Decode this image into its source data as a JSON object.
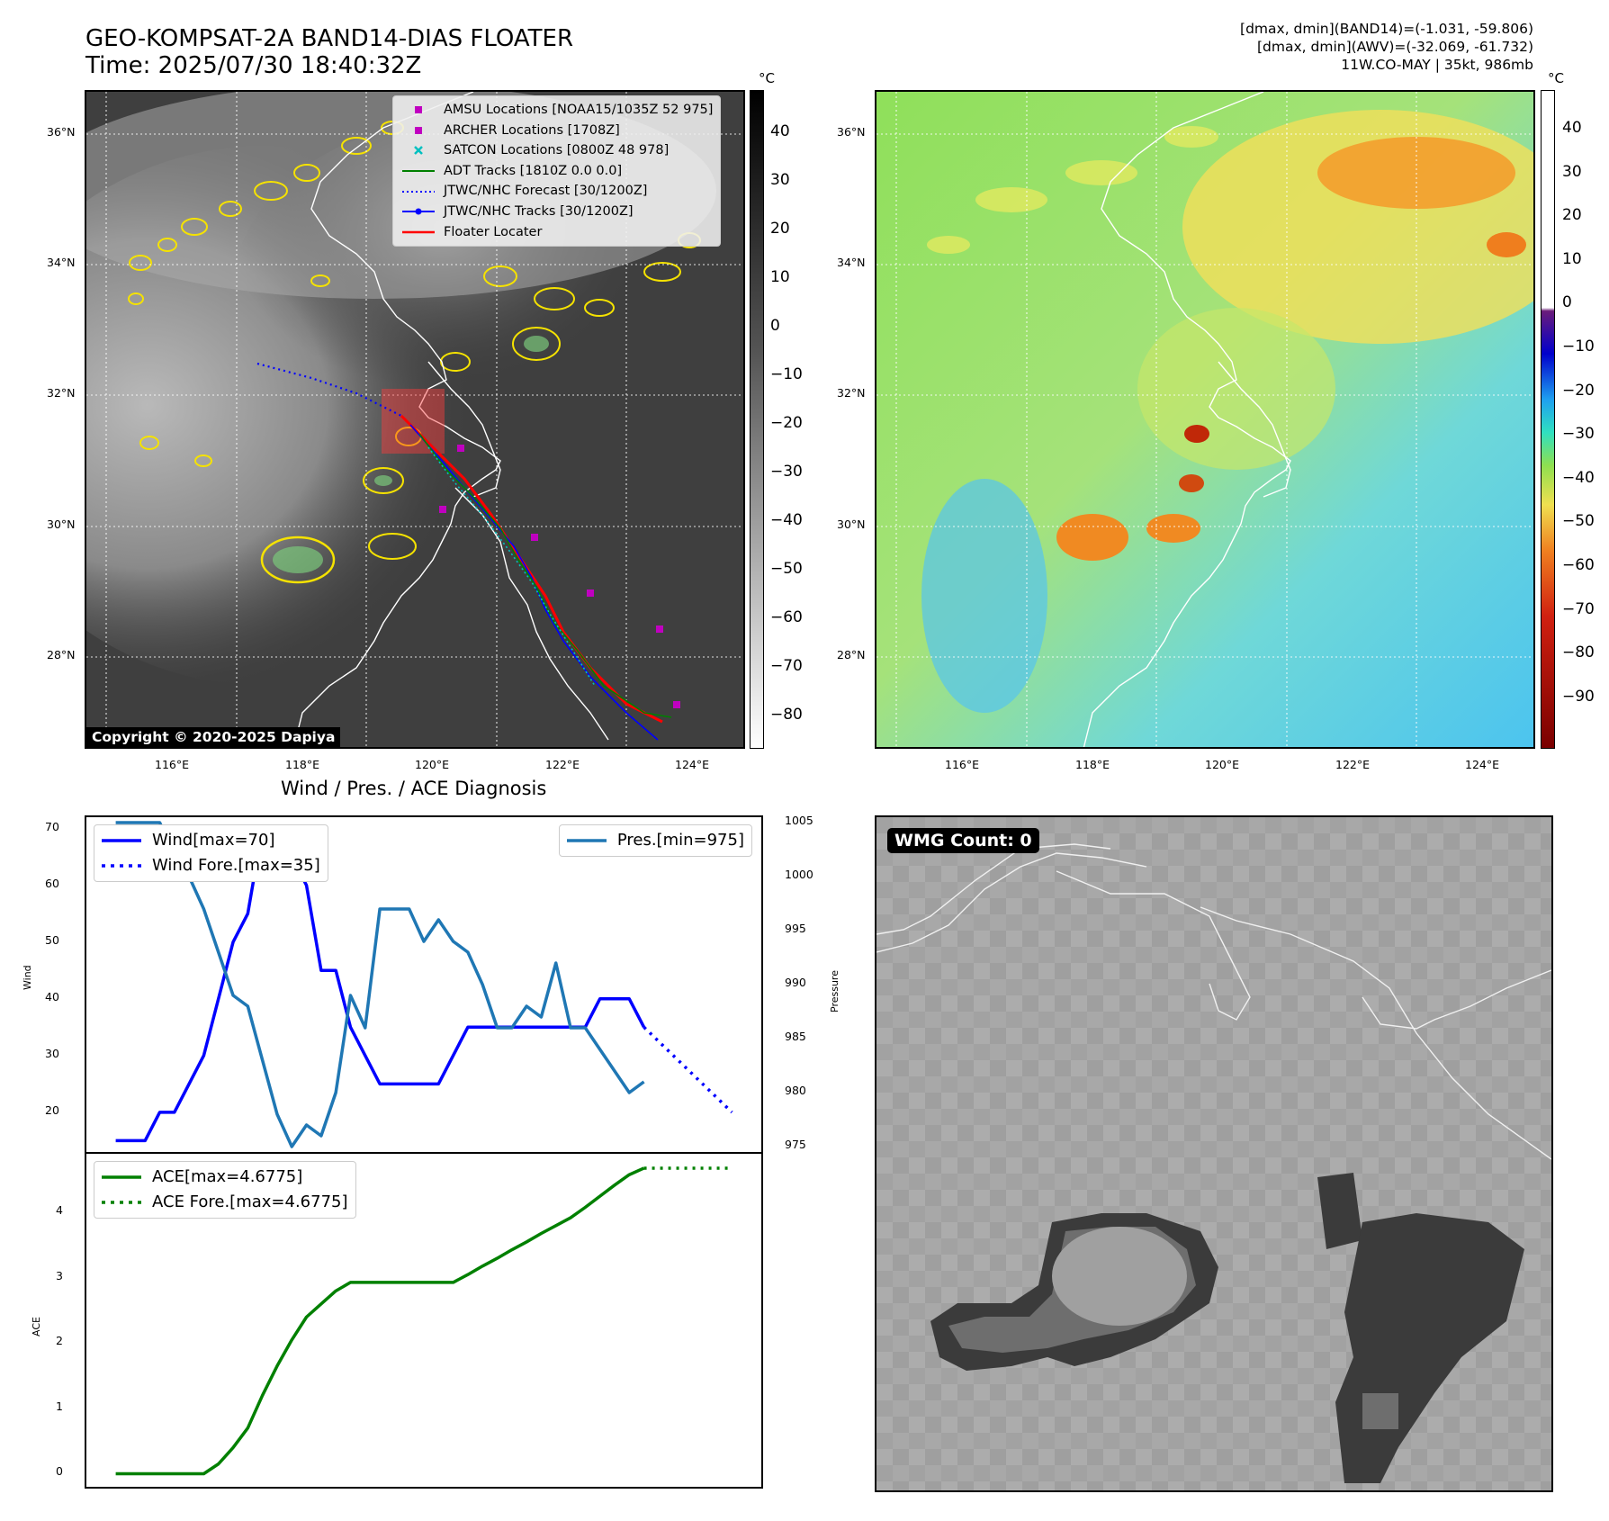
{
  "header": {
    "title_line1": "GEO-KOMPSAT-2A BAND14-DIAS FLOATER",
    "title_line2": "Time: 2025/07/30 18:40:32Z",
    "info_line1": "[dmax, dmin](BAND14)=(-1.031, -59.806)",
    "info_line2": "[dmax, dmin](AWV)=(-32.069, -61.732)",
    "info_line3": "11W.CO-MAY | 35kt, 986mb"
  },
  "map": {
    "lon_ticks": [
      "116°E",
      "118°E",
      "120°E",
      "122°E",
      "124°E"
    ],
    "lat_ticks": [
      "36°N",
      "34°N",
      "32°N",
      "30°N",
      "28°N"
    ],
    "legend": [
      {
        "label": "AMSU Locations [NOAA15/1035Z 52 975]",
        "symbol": "square",
        "color": "#c000c0"
      },
      {
        "label": "ARCHER Locations [1708Z]",
        "symbol": "square",
        "color": "#c000c0"
      },
      {
        "label": "SATCON Locations [0800Z 48 978]",
        "symbol": "x",
        "color": "#00c0c0"
      },
      {
        "label": "ADT Tracks [1810Z 0.0 0.0]",
        "symbol": "line",
        "color": "#008000"
      },
      {
        "label": "JTWC/NHC Forecast [30/1200Z]",
        "symbol": "dotted",
        "color": "#0000ff"
      },
      {
        "label": "JTWC/NHC Tracks [30/1200Z]",
        "symbol": "line-dot",
        "color": "#0000ff"
      },
      {
        "label": "Floater Locater",
        "symbol": "line",
        "color": "#ff0000"
      }
    ],
    "copyright": "Copyright © 2020-2025 Dapiya",
    "ir_colorbar": {
      "unit": "°C",
      "ticks": [
        "40",
        "30",
        "20",
        "10",
        "0",
        "−10",
        "−20",
        "−30",
        "−40",
        "−50",
        "−60",
        "−70",
        "−80"
      ]
    },
    "awv_colorbar": {
      "unit": "°C",
      "ticks": [
        "40",
        "30",
        "20",
        "10",
        "0",
        "−10",
        "−20",
        "−30",
        "−40",
        "−50",
        "−60",
        "−70",
        "−80",
        "−90"
      ]
    }
  },
  "diagnosis": {
    "title": "Wind / Pres. / ACE Diagnosis",
    "wind_ylabel": "Wind",
    "pres_ylabel": "Pressure",
    "ace_ylabel": "ACE",
    "wind_ticks": [
      "70",
      "60",
      "50",
      "40",
      "30",
      "20"
    ],
    "pres_ticks": [
      "1005",
      "1000",
      "995",
      "990",
      "985",
      "980",
      "975"
    ],
    "ace_ticks": [
      "4",
      "3",
      "2",
      "1",
      "0"
    ],
    "legend_wind": "Wind[max=70]",
    "legend_wind_fore": "Wind Fore.[max=35]",
    "legend_pres": "Pres.[min=975]",
    "legend_ace": "ACE[max=4.6775]",
    "legend_ace_fore": "ACE Fore.[max=4.6775]",
    "wmg_label": "WMG Count: 0"
  },
  "chart_data": [
    {
      "type": "line",
      "name_hint": "wind-pressure",
      "x": [
        0,
        1,
        2,
        3,
        4,
        5,
        6,
        7,
        8,
        9,
        10,
        11,
        12,
        13,
        14,
        15,
        16,
        17,
        18,
        19,
        20,
        21,
        22,
        23,
        24,
        25,
        26,
        27,
        28,
        29,
        30,
        31,
        32,
        33,
        34,
        35,
        36
      ],
      "series": [
        {
          "name": "Wind[max=70]",
          "axis": "wind",
          "color": "#0000ff",
          "values": [
            15,
            15,
            15,
            20,
            20,
            25,
            30,
            40,
            50,
            55,
            70,
            65,
            65,
            60,
            45,
            45,
            35,
            30,
            25,
            25,
            25,
            25,
            25,
            30,
            35,
            35,
            35,
            35,
            35,
            35,
            35,
            35,
            35,
            40,
            40,
            40,
            35
          ]
        },
        {
          "name": "Wind Fore.[max=35]",
          "axis": "wind",
          "color": "#0000ff",
          "dashed": true,
          "x": [
            36,
            42
          ],
          "values": [
            35,
            20
          ]
        },
        {
          "name": "Pres.[min=975]",
          "axis": "pressure",
          "color": "#1f77b4",
          "values": [
            1005,
            1005,
            1005,
            1005,
            1002,
            1000,
            997,
            993,
            989,
            988,
            983,
            978,
            975,
            977,
            976,
            980,
            989,
            986,
            997,
            997,
            997,
            994,
            996,
            994,
            993,
            990,
            986,
            986,
            988,
            987,
            992,
            986,
            986,
            984,
            982,
            980,
            981
          ]
        }
      ],
      "wind_ylim": [
        13,
        72
      ],
      "pressure_ylim": [
        974.5,
        1005.5
      ],
      "xlim": [
        -2,
        44
      ]
    },
    {
      "type": "line",
      "name_hint": "ace",
      "series": [
        {
          "name": "ACE[max=4.6775]",
          "color": "#008000",
          "x": [
            0,
            1,
            2,
            3,
            4,
            5,
            6,
            7,
            8,
            9,
            10,
            11,
            12,
            13,
            14,
            15,
            16,
            17,
            18,
            19,
            20,
            21,
            22,
            23,
            24,
            25,
            26,
            27,
            28,
            29,
            30,
            31,
            32,
            33,
            34,
            35,
            36
          ],
          "values": [
            0,
            0,
            0,
            0,
            0,
            0,
            0,
            0.15,
            0.4,
            0.7,
            1.2,
            1.65,
            2.05,
            2.4,
            2.6,
            2.8,
            2.93,
            2.93,
            2.93,
            2.93,
            2.93,
            2.93,
            2.93,
            2.93,
            3.05,
            3.18,
            3.3,
            3.43,
            3.55,
            3.68,
            3.8,
            3.92,
            4.08,
            4.25,
            4.42,
            4.58,
            4.68
          ]
        },
        {
          "name": "ACE Fore.[max=4.6775]",
          "color": "#008000",
          "dashed": true,
          "x": [
            36,
            42
          ],
          "values": [
            4.68,
            4.68
          ]
        }
      ],
      "ylim": [
        -0.2,
        4.9
      ],
      "xlim": [
        -2,
        44
      ]
    }
  ]
}
